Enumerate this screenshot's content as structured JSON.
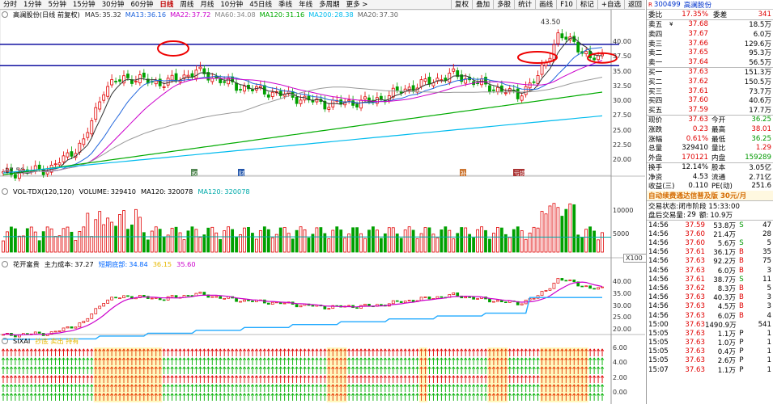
{
  "toolbar": {
    "periods": [
      "分时",
      "1分钟",
      "5分钟",
      "15分钟",
      "30分钟",
      "60分钟",
      "日线",
      "周线",
      "月线",
      "10分钟",
      "45日线",
      "季线",
      "年线",
      "多周期",
      "更多 >"
    ],
    "active_period": "日线",
    "right_buttons": [
      "复权",
      "叠加",
      "多股",
      "统计",
      "画线",
      "F10",
      "标记",
      "+自选",
      "返回"
    ]
  },
  "main_pane": {
    "title": "高澜股份(日线 前复权)",
    "mas": [
      {
        "label": "MA5:",
        "value": "35.32",
        "color": "#333333"
      },
      {
        "label": "MA13:",
        "value": "36.16",
        "color": "#2266dd"
      },
      {
        "label": "MA22:",
        "value": "37.72",
        "color": "#cc00cc"
      },
      {
        "label": "MA60:",
        "value": "34.08",
        "color": "#888888"
      },
      {
        "label": "MA120:",
        "value": "31.16",
        "color": "#00aa00"
      },
      {
        "label": "MA200:",
        "value": "28.38",
        "color": "#00bbee"
      },
      {
        "label": "MA20:",
        "value": "37.30",
        "color": "#666666"
      }
    ],
    "yticks": [
      "40.00",
      "37.50",
      "35.00",
      "32.50",
      "30.00",
      "27.50",
      "25.00",
      "22.50",
      "20.00"
    ],
    "high_marker": "43.50",
    "low_marker": "17.50",
    "event_tags": [
      "权",
      "财",
      "补",
      "亏损"
    ]
  },
  "vol_pane": {
    "title": "VOL-TDX(120,120)",
    "volume_label": "VOLUME:",
    "volume_value": "329410",
    "ma_label": "MA120:",
    "ma_value": "320078",
    "ma2_label": "MA120:",
    "ma2_value": "320078",
    "yticks": [
      "10000",
      "5000"
    ],
    "unit": "X100"
  },
  "cost_pane": {
    "title": "花开富贵",
    "cost_label": "主力成本:",
    "cost_value": "37.27",
    "bottom_label": "短期底部:",
    "bottom_value": "34.84",
    "val3": "36.15",
    "val4": "35.60",
    "yticks": [
      "40.00",
      "35.00",
      "30.00",
      "25.00",
      "20.00"
    ]
  },
  "sig_pane": {
    "title": "SIXAI",
    "legend": "抄底 卖出 持有",
    "yticks": [
      "6.00",
      "4.00",
      "2.00",
      "0.00"
    ]
  },
  "quote": {
    "code": "300499",
    "name": "高澜股份",
    "weibi_label": "委比",
    "weibi": "17.35%",
    "weicha_label": "委差",
    "weicha": "341",
    "asks": [
      {
        "label": "卖五",
        "price": "37.68",
        "vol": "18.5万",
        "mark": "¥"
      },
      {
        "label": "卖四",
        "price": "37.67",
        "vol": "6.0万",
        "mark": ""
      },
      {
        "label": "卖三",
        "price": "37.66",
        "vol": "129.6万",
        "mark": ""
      },
      {
        "label": "卖二",
        "price": "37.65",
        "vol": "95.3万",
        "mark": ""
      },
      {
        "label": "卖一",
        "price": "37.64",
        "vol": "56.5万",
        "mark": ""
      }
    ],
    "bids": [
      {
        "label": "买一",
        "price": "37.63",
        "vol": "151.3万"
      },
      {
        "label": "买二",
        "price": "37.62",
        "vol": "150.5万"
      },
      {
        "label": "买三",
        "price": "37.61",
        "vol": "73.7万"
      },
      {
        "label": "买四",
        "price": "37.60",
        "vol": "40.6万"
      },
      {
        "label": "买五",
        "price": "37.59",
        "vol": "17.7万"
      }
    ],
    "stats": [
      {
        "l1": "现价",
        "v1": "37.63",
        "c1": "red",
        "l2": "今开",
        "v2": "36.25",
        "c2": "green"
      },
      {
        "l1": "涨跌",
        "v1": "0.23",
        "c1": "red",
        "l2": "最高",
        "v2": "38.01",
        "c2": "red"
      },
      {
        "l1": "涨幅",
        "v1": "0.61%",
        "c1": "red",
        "l2": "最低",
        "v2": "36.25",
        "c2": "green"
      },
      {
        "l1": "总量",
        "v1": "329410",
        "c1": "black",
        "l2": "量比",
        "v2": "1.29",
        "c2": "red"
      },
      {
        "l1": "外盘",
        "v1": "170121",
        "c1": "red",
        "l2": "内盘",
        "v2": "159289",
        "c2": "green"
      }
    ],
    "stats2": [
      {
        "l1": "换手",
        "v1": "12.14%",
        "l2": "股本",
        "v2": "3.05亿"
      },
      {
        "l1": "净资",
        "v1": "4.53",
        "l2": "流通",
        "v2": "2.71亿"
      },
      {
        "l1": "收益(三)",
        "v1": "0.110",
        "l2": "PE(动)",
        "v2": "251.6"
      }
    ],
    "ad": "自动续费通达信普及版",
    "ad_price": "30元/月",
    "status_label": "交易状态:",
    "status": "闭市阶段 15:33:00",
    "after_label": "盘后交易量:",
    "after_vol": "29",
    "after_amt_label": "额:",
    "after_amt": "10.9万"
  },
  "ticks": [
    {
      "t": "14:56",
      "p": "37.59",
      "v": "53.8万",
      "bs": "S",
      "n": "47"
    },
    {
      "t": "14:56",
      "p": "37.60",
      "v": "21.4万",
      "bs": "",
      "n": "28"
    },
    {
      "t": "14:56",
      "p": "37.60",
      "v": "5.6万",
      "bs": "S",
      "n": "5"
    },
    {
      "t": "14:56",
      "p": "37.61",
      "v": "36.1万",
      "bs": "B",
      "n": "35"
    },
    {
      "t": "14:56",
      "p": "37.63",
      "v": "92.2万",
      "bs": "B",
      "n": "75"
    },
    {
      "t": "14:56",
      "p": "37.63",
      "v": "6.0万",
      "bs": "B",
      "n": "3"
    },
    {
      "t": "14:56",
      "p": "37.61",
      "v": "38.7万",
      "bs": "S",
      "n": "11"
    },
    {
      "t": "14:56",
      "p": "37.62",
      "v": "8.3万",
      "bs": "B",
      "n": "5"
    },
    {
      "t": "14:56",
      "p": "37.63",
      "v": "40.3万",
      "bs": "B",
      "n": "3"
    },
    {
      "t": "14:56",
      "p": "37.63",
      "v": "4.5万",
      "bs": "B",
      "n": "3"
    },
    {
      "t": "14:56",
      "p": "37.63",
      "v": "6.0万",
      "bs": "B",
      "n": "4"
    },
    {
      "t": "15:00",
      "p": "37.63",
      "v": "1490.9万",
      "bs": "",
      "n": "541"
    },
    {
      "t": "15:05",
      "p": "37.63",
      "v": "1.1万",
      "bs": "P",
      "n": "1"
    },
    {
      "t": "15:05",
      "p": "37.63",
      "v": "1.0万",
      "bs": "P",
      "n": "1"
    },
    {
      "t": "15:05",
      "p": "37.63",
      "v": "0.4万",
      "bs": "P",
      "n": "1"
    },
    {
      "t": "15:05",
      "p": "37.63",
      "v": "2.6万",
      "bs": "P",
      "n": "1"
    },
    {
      "t": "15:07",
      "p": "37.63",
      "v": "1.1万",
      "bs": "P",
      "n": "1"
    }
  ]
}
